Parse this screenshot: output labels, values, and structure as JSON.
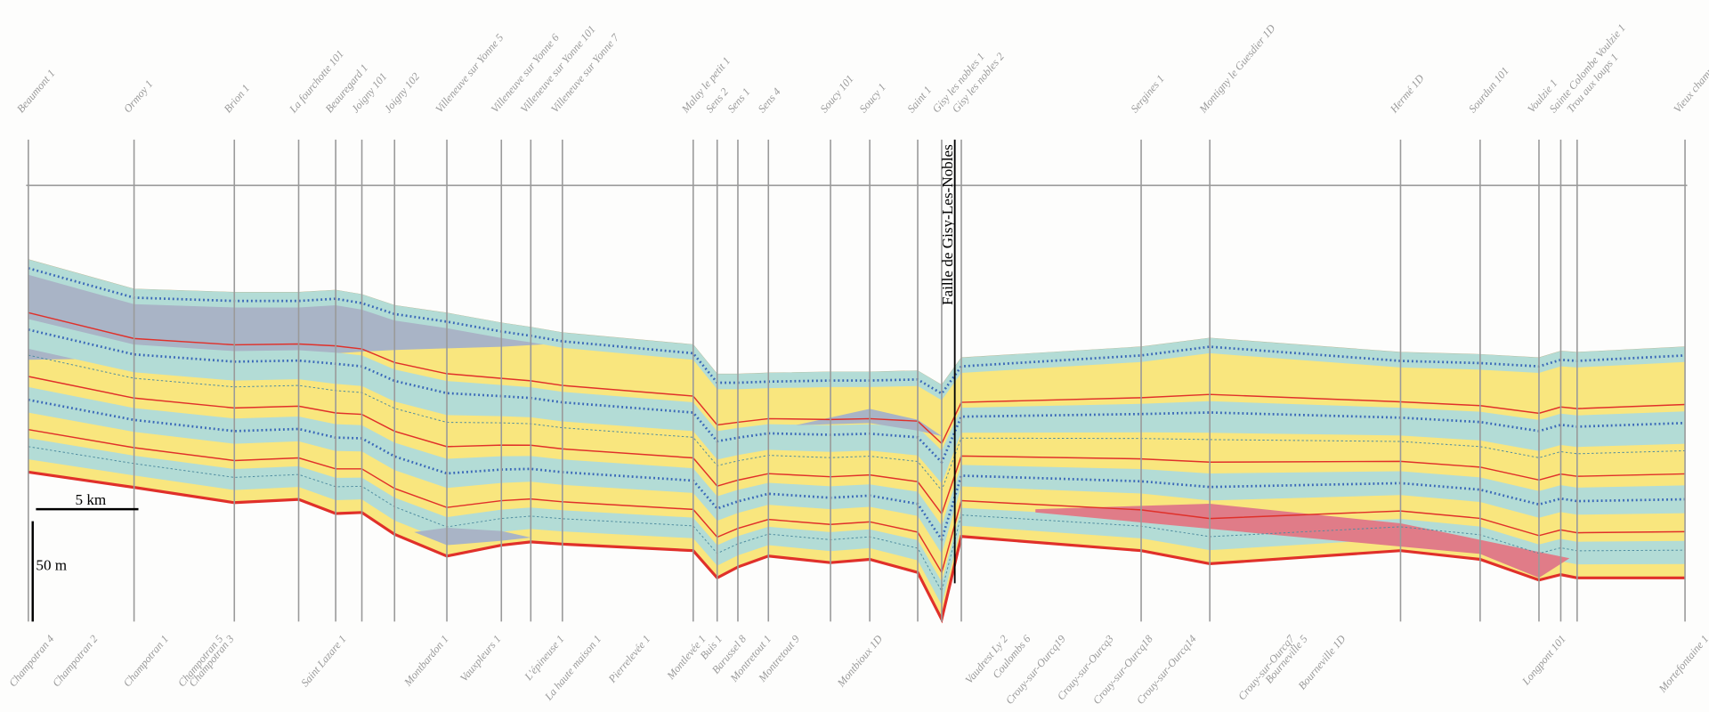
{
  "wells_top": [
    "Beaumont 1",
    "Ormoy 1",
    "Brion 1",
    "La fourchotte 101",
    "Beauregard 1",
    "Joigny 101",
    "Joigny 102",
    "Villeneuve sur Yonne 5",
    "Villeneuve sur Yonne 6",
    "Villeneuve sur Yonne 101",
    "Villeneuve sur Yonne 7",
    "Malay le petit 1",
    "Sens 2",
    "Sens 1",
    "Sens 4",
    "Soucy 101",
    "Soucy 1",
    "Saint 1",
    "Gisy les nobles 1",
    "Gisy les nobles 2",
    "Sergines 1",
    "Montigny le Guesdier 1D",
    "Hermé 1D",
    "Sourdun 101",
    "Voulzie 1",
    "Sainte Colombe Voulzie 1",
    "Trou aux loups 1",
    "Vieux champ"
  ],
  "wells_bottom": [
    "Champotran 4",
    "Champotran 2",
    "Champotran 1",
    "Champotran 5",
    "Champotran 3",
    "Saint Lazare 1",
    "Montbardon 1",
    "Vauxpleurs 1",
    "L'épineuse 1",
    "La haute maison 1",
    "Pierrelevée 1",
    "Montlevée 1",
    "Buis 1",
    "Barussel 8",
    "Montretout 1",
    "Montretout 9",
    "Montbioux 1D",
    "Vaudrest Ly 2",
    "Coulombs 6",
    "Crouy-sur-Ourcq19",
    "Crouy-sur-Ourcq3",
    "Crouy-sur-Ourcq18",
    "Crouy-sur-Ourcq14",
    "Crouy-sur-Ourcq7",
    "Bourneville 5",
    "Bourneville 1D",
    "Longpont 101",
    "Mortefontaine 1"
  ],
  "fault_label": "Faille de Gisy-Les-Nobles",
  "scale": {
    "horizontal": "5 km",
    "vertical": "50 m"
  }
}
